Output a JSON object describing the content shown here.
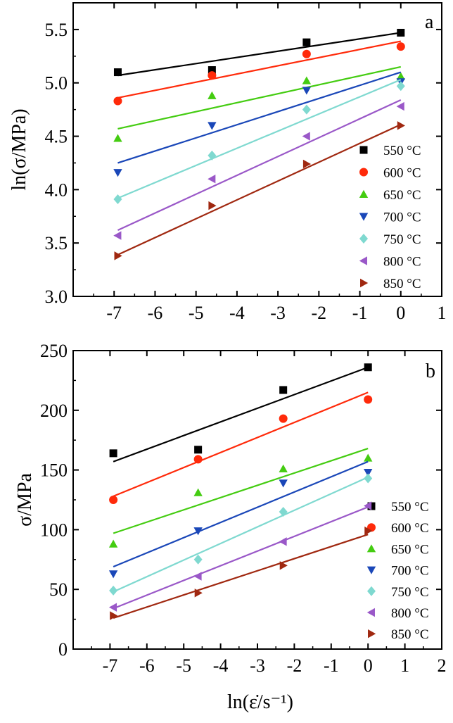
{
  "chart_data": [
    {
      "type": "scatter",
      "panel_label": "a",
      "ylabel": "ln(σ/MPa)",
      "xlabel": "",
      "xlim": [
        -8,
        1
      ],
      "ylim": [
        3.0,
        5.75
      ],
      "xticks": [
        -7,
        -6,
        -5,
        -4,
        -3,
        -2,
        -1,
        0,
        1
      ],
      "xtick_labels": [
        "-7",
        "-6",
        "-5",
        "-4",
        "-3",
        "-2",
        "-1",
        "0",
        "1"
      ],
      "yticks": [
        3.0,
        3.5,
        4.0,
        4.5,
        5.0,
        5.5
      ],
      "ytick_labels": [
        "3.0",
        "3.5",
        "4.0",
        "4.5",
        "5.0",
        "5.5"
      ],
      "legend_position": "right",
      "x": [
        -6.91,
        -4.61,
        -2.3,
        0.0
      ],
      "series": [
        {
          "name": "550 °C",
          "marker": "square",
          "color": "#000000",
          "values": [
            5.1,
            5.12,
            5.38,
            5.47
          ],
          "fit": [
            [
              -6.91,
              5.07
            ],
            [
              0.0,
              5.47
            ]
          ]
        },
        {
          "name": "600 °C",
          "marker": "circle",
          "color": "#ff2a0a",
          "values": [
            4.83,
            5.07,
            5.27,
            5.34
          ],
          "fit": [
            [
              -6.91,
              4.86
            ],
            [
              0.0,
              5.39
            ]
          ]
        },
        {
          "name": "650 °C",
          "marker": "triangle-up",
          "color": "#44cc11",
          "values": [
            4.48,
            4.88,
            5.02,
            5.06
          ],
          "fit": [
            [
              -6.91,
              4.57
            ],
            [
              0.0,
              5.15
            ]
          ]
        },
        {
          "name": "700 °C",
          "marker": "triangle-down",
          "color": "#1a47b8",
          "values": [
            4.16,
            4.6,
            4.93,
            5.01
          ],
          "fit": [
            [
              -6.91,
              4.25
            ],
            [
              0.0,
              5.1
            ]
          ]
        },
        {
          "name": "750 °C",
          "marker": "diamond",
          "color": "#7fd9d0",
          "values": [
            3.91,
            4.32,
            4.75,
            4.97
          ],
          "fit": [
            [
              -6.91,
              3.92
            ],
            [
              0.0,
              5.03
            ]
          ]
        },
        {
          "name": "800 °C",
          "marker": "triangle-left",
          "color": "#9a58c8",
          "values": [
            3.57,
            4.1,
            4.5,
            4.78
          ],
          "fit": [
            [
              -6.91,
              3.62
            ],
            [
              0.0,
              4.84
            ]
          ]
        },
        {
          "name": "850 °C",
          "marker": "triangle-right",
          "color": "#a02810",
          "values": [
            3.38,
            3.85,
            4.24,
            4.6
          ],
          "fit": [
            [
              -6.91,
              3.39
            ],
            [
              0.0,
              4.61
            ]
          ]
        }
      ]
    },
    {
      "type": "scatter",
      "panel_label": "b",
      "ylabel": "σ/MPa",
      "xlabel": "ln(ε̇/s⁻¹)",
      "xlim": [
        -8,
        2
      ],
      "ylim": [
        0,
        250
      ],
      "xticks": [
        -7,
        -6,
        -5,
        -4,
        -3,
        -2,
        -1,
        0,
        1,
        2
      ],
      "xtick_labels": [
        "-7",
        "-6",
        "-5",
        "-4",
        "-3",
        "-2",
        "-1",
        "0",
        "1",
        "2"
      ],
      "yticks": [
        0,
        50,
        100,
        150,
        200,
        250
      ],
      "ytick_labels": [
        "0",
        "50",
        "100",
        "150",
        "200",
        "250"
      ],
      "legend_position": "right",
      "x": [
        -6.91,
        -4.61,
        -2.3,
        0.0
      ],
      "series": [
        {
          "name": "550 °C",
          "marker": "square",
          "color": "#000000",
          "values": [
            164,
            167,
            217,
            236
          ],
          "fit": [
            [
              -6.91,
              157
            ],
            [
              0.0,
              236
            ]
          ]
        },
        {
          "name": "600 °C",
          "marker": "circle",
          "color": "#ff2a0a",
          "values": [
            125,
            159,
            193,
            209
          ],
          "fit": [
            [
              -6.91,
              128
            ],
            [
              0.0,
              215
            ]
          ]
        },
        {
          "name": "650 °C",
          "marker": "triangle-up",
          "color": "#44cc11",
          "values": [
            88,
            131,
            151,
            160
          ],
          "fit": [
            [
              -6.91,
              97
            ],
            [
              0.0,
              168
            ]
          ]
        },
        {
          "name": "700 °C",
          "marker": "triangle-down",
          "color": "#1a47b8",
          "values": [
            63,
            99,
            139,
            148
          ],
          "fit": [
            [
              -6.91,
              69
            ],
            [
              0.0,
              157
            ]
          ]
        },
        {
          "name": "750 °C",
          "marker": "diamond",
          "color": "#7fd9d0",
          "values": [
            49,
            75,
            115,
            143
          ],
          "fit": [
            [
              -6.91,
              48
            ],
            [
              0.0,
              144
            ]
          ]
        },
        {
          "name": "800 °C",
          "marker": "triangle-left",
          "color": "#9a58c8",
          "values": [
            35,
            61,
            90,
            120
          ],
          "fit": [
            [
              -6.91,
              34
            ],
            [
              0.0,
              119
            ]
          ]
        },
        {
          "name": "850 °C",
          "marker": "triangle-right",
          "color": "#a02810",
          "values": [
            28,
            47,
            70,
            99
          ],
          "fit": [
            [
              -6.91,
              26
            ],
            [
              0.0,
              96
            ]
          ]
        }
      ]
    }
  ]
}
